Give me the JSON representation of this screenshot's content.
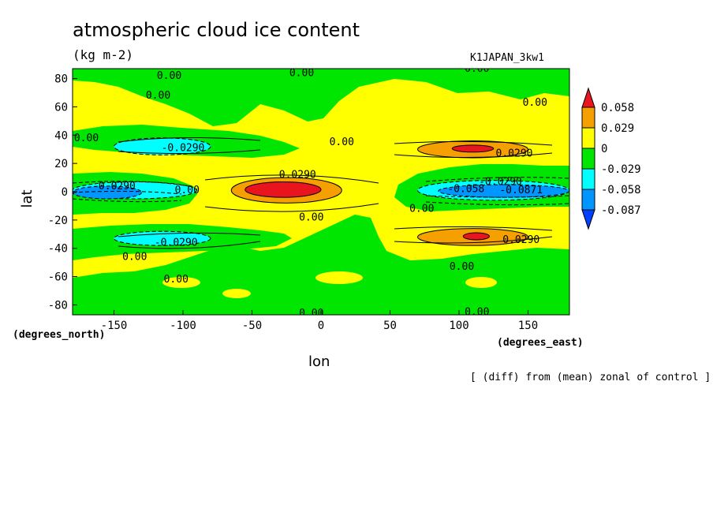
{
  "chart_data": {
    "type": "heatmap",
    "title": "atmospheric cloud ice content",
    "units": "(kg m-2)",
    "run_label": "K1JAPAN_3kw1",
    "xlabel": "lon",
    "ylabel": "lat",
    "x_units": "(degrees_east)",
    "y_units": "(degrees_north)",
    "footnote": "[ (diff) from (mean) zonal of control ]",
    "xlim": [
      -180,
      180
    ],
    "ylim": [
      -87,
      87
    ],
    "x_ticks": [
      "-150",
      "-100",
      "-50",
      "0",
      "50",
      "100",
      "150"
    ],
    "x_tick_values": [
      -150,
      -100,
      -50,
      0,
      50,
      100,
      150
    ],
    "y_ticks": [
      "80",
      "60",
      "40",
      "20",
      "0",
      "-20",
      "-40",
      "-60",
      "-80"
    ],
    "y_tick_values": [
      80,
      60,
      40,
      20,
      0,
      -20,
      -40,
      -60,
      -80
    ],
    "colorbar": {
      "levels": [
        "0.058",
        "0.029",
        "0",
        "-0.029",
        "-0.058",
        "-0.087"
      ],
      "colors": [
        "#e8141e",
        "#f5a000",
        "#ffff00",
        "#00e600",
        "#00ffff",
        "#0096ff",
        "#0040ff"
      ]
    },
    "regions": [
      {
        "kind": "positive",
        "level": 1,
        "lon": [
          -65,
          15
        ],
        "lat": [
          -8,
          10
        ]
      },
      {
        "kind": "positive",
        "level": 2,
        "lon": [
          -55,
          0
        ],
        "lat": [
          -4,
          7
        ]
      },
      {
        "kind": "positive",
        "level": 1,
        "lon": [
          70,
          150
        ],
        "lat": [
          24,
          36
        ]
      },
      {
        "kind": "positive",
        "level": 2,
        "lon": [
          95,
          125
        ],
        "lat": [
          28,
          33
        ]
      },
      {
        "kind": "positive",
        "level": 1,
        "lon": [
          70,
          150
        ],
        "lat": [
          -38,
          -26
        ]
      },
      {
        "kind": "positive",
        "level": 2,
        "lon": [
          103,
          122
        ],
        "lat": [
          -34,
          -29
        ]
      },
      {
        "kind": "negative",
        "level": 1,
        "lon": [
          -150,
          -80
        ],
        "lat": [
          26,
          38
        ]
      },
      {
        "kind": "negative",
        "level": 1,
        "lon": [
          -150,
          -80
        ],
        "lat": [
          -38,
          -28
        ]
      },
      {
        "kind": "negative",
        "level": 1,
        "lon": [
          -180,
          -90
        ],
        "lat": [
          -5,
          7
        ]
      },
      {
        "kind": "negative",
        "level": 2,
        "lon": [
          -180,
          -130
        ],
        "lat": [
          -5,
          4
        ]
      },
      {
        "kind": "negative",
        "level": 1,
        "lon": [
          70,
          180
        ],
        "lat": [
          -6,
          8
        ]
      },
      {
        "kind": "negative",
        "level": 2,
        "lon": [
          85,
          180
        ],
        "lat": [
          -4,
          5
        ]
      }
    ],
    "contour_labels": [
      {
        "text": "0.00",
        "lon": -110,
        "lat": 82
      },
      {
        "text": "0.00",
        "lon": -118,
        "lat": 68
      },
      {
        "text": "0.00",
        "lon": -14,
        "lat": 84
      },
      {
        "text": "0.00",
        "lon": 113,
        "lat": 87
      },
      {
        "text": "0.00",
        "lon": 155,
        "lat": 63
      },
      {
        "text": "0.00",
        "lon": -170,
        "lat": 38
      },
      {
        "text": "0.00",
        "lon": 15,
        "lat": 35
      },
      {
        "text": "-0.0290",
        "lon": -100,
        "lat": 31
      },
      {
        "text": "0.0290",
        "lon": 140,
        "lat": 27
      },
      {
        "text": "0.0290",
        "lon": -17,
        "lat": 12
      },
      {
        "text": "-0.0290",
        "lon": 130,
        "lat": 7
      },
      {
        "text": "-0.0290",
        "lon": -150,
        "lat": 4
      },
      {
        "text": "0.00",
        "lon": -97,
        "lat": 1
      },
      {
        "text": "-0.058",
        "lon": 105,
        "lat": 2
      },
      {
        "text": "-0.0871",
        "lon": 145,
        "lat": 1
      },
      {
        "text": "0.00",
        "lon": 73,
        "lat": -12
      },
      {
        "text": "0.00",
        "lon": -7,
        "lat": -18
      },
      {
        "text": "-0.0290",
        "lon": -105,
        "lat": -36
      },
      {
        "text": "0.0290",
        "lon": 145,
        "lat": -34
      },
      {
        "text": "0.00",
        "lon": -135,
        "lat": -46
      },
      {
        "text": "0.00",
        "lon": 102,
        "lat": -53
      },
      {
        "text": "0.00",
        "lon": -105,
        "lat": -62
      },
      {
        "text": "0.00",
        "lon": 113,
        "lat": -85
      },
      {
        "text": "0.00",
        "lon": -7,
        "lat": -86
      }
    ]
  }
}
